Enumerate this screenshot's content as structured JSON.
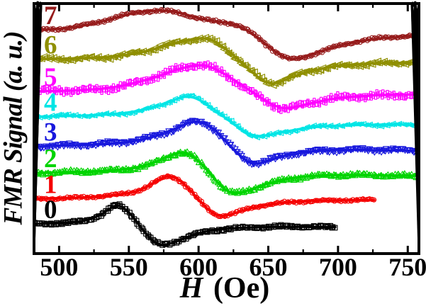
{
  "figure": {
    "ylabel": "FMR Signal (a. u.)",
    "xlabel_italic": "H",
    "xlabel_rest": " (Oe)"
  },
  "chart_data": {
    "type": "line",
    "title": "",
    "xlabel": "H (Oe)",
    "ylabel": "FMR Signal (a. u.)",
    "x_unit": "Oe",
    "y_unit": "a. u. (arbitrary, no numeric ticks)",
    "xlim": [
      482,
      758
    ],
    "ylim": [
      0,
      10.1
    ],
    "x_major_ticks": [
      500,
      550,
      600,
      650,
      700,
      750
    ],
    "x_minor_step": 25,
    "grid": false,
    "legend_position": "curve index labels drawn on plot at left of each curve",
    "series": [
      {
        "label": "0",
        "color": "#000000",
        "marker": "square",
        "points": [
          [
            483,
            1.2
          ],
          [
            495,
            1.22
          ],
          [
            508,
            1.26
          ],
          [
            520,
            1.36
          ],
          [
            530,
            1.58
          ],
          [
            537,
            1.84
          ],
          [
            541,
            1.94
          ],
          [
            545,
            1.88
          ],
          [
            551,
            1.6
          ],
          [
            557,
            1.18
          ],
          [
            563,
            0.76
          ],
          [
            568,
            0.48
          ],
          [
            572,
            0.37
          ],
          [
            576,
            0.36
          ],
          [
            582,
            0.45
          ],
          [
            590,
            0.62
          ],
          [
            600,
            0.82
          ],
          [
            612,
            0.95
          ],
          [
            625,
            1.02
          ],
          [
            640,
            1.06
          ],
          [
            660,
            1.08
          ],
          [
            680,
            1.08
          ],
          [
            698,
            1.07
          ]
        ]
      },
      {
        "label": "1",
        "color": "#F50000",
        "marker": "circle",
        "points": [
          [
            483,
            2.22
          ],
          [
            495,
            2.23
          ],
          [
            510,
            2.25
          ],
          [
            525,
            2.29
          ],
          [
            540,
            2.36
          ],
          [
            552,
            2.47
          ],
          [
            562,
            2.67
          ],
          [
            570,
            2.93
          ],
          [
            576,
            3.1
          ],
          [
            580,
            3.12
          ],
          [
            586,
            2.98
          ],
          [
            593,
            2.62
          ],
          [
            601,
            2.12
          ],
          [
            608,
            1.73
          ],
          [
            613,
            1.56
          ],
          [
            617,
            1.52
          ],
          [
            623,
            1.58
          ],
          [
            631,
            1.72
          ],
          [
            641,
            1.88
          ],
          [
            653,
            2.0
          ],
          [
            666,
            2.08
          ],
          [
            681,
            2.13
          ],
          [
            700,
            2.15
          ],
          [
            715,
            2.16
          ],
          [
            726,
            2.16
          ]
        ]
      },
      {
        "label": "2",
        "color": "#00D400",
        "marker": "triangle-up",
        "points": [
          [
            483,
            3.26
          ],
          [
            500,
            3.28
          ],
          [
            520,
            3.31
          ],
          [
            540,
            3.37
          ],
          [
            555,
            3.48
          ],
          [
            567,
            3.66
          ],
          [
            577,
            3.9
          ],
          [
            584,
            4.05
          ],
          [
            589,
            4.08
          ],
          [
            595,
            3.96
          ],
          [
            603,
            3.56
          ],
          [
            611,
            3.05
          ],
          [
            618,
            2.64
          ],
          [
            623,
            2.47
          ],
          [
            627,
            2.44
          ],
          [
            634,
            2.52
          ],
          [
            643,
            2.7
          ],
          [
            654,
            2.9
          ],
          [
            667,
            3.05
          ],
          [
            683,
            3.14
          ],
          [
            700,
            3.17
          ],
          [
            725,
            3.16
          ],
          [
            757,
            3.15
          ]
        ]
      },
      {
        "label": "3",
        "color": "#1818DD",
        "marker": "triangle-down",
        "points": [
          [
            483,
            4.34
          ],
          [
            500,
            4.36
          ],
          [
            520,
            4.39
          ],
          [
            540,
            4.45
          ],
          [
            558,
            4.59
          ],
          [
            572,
            4.8
          ],
          [
            584,
            5.06
          ],
          [
            593,
            5.28
          ],
          [
            599,
            5.33
          ],
          [
            605,
            5.24
          ],
          [
            613,
            4.92
          ],
          [
            621,
            4.44
          ],
          [
            629,
            4.0
          ],
          [
            635,
            3.73
          ],
          [
            640,
            3.64
          ],
          [
            646,
            3.68
          ],
          [
            654,
            3.82
          ],
          [
            664,
            3.98
          ],
          [
            677,
            4.1
          ],
          [
            693,
            4.17
          ],
          [
            712,
            4.19
          ],
          [
            733,
            4.17
          ],
          [
            757,
            4.15
          ]
        ]
      },
      {
        "label": "4",
        "color": "#00E5E5",
        "marker": "triangle-left",
        "points": [
          [
            483,
            5.53
          ],
          [
            500,
            5.55
          ],
          [
            520,
            5.58
          ],
          [
            540,
            5.64
          ],
          [
            556,
            5.76
          ],
          [
            570,
            5.95
          ],
          [
            582,
            6.2
          ],
          [
            590,
            6.33
          ],
          [
            597,
            6.29
          ],
          [
            605,
            6.06
          ],
          [
            615,
            5.66
          ],
          [
            626,
            5.2
          ],
          [
            634,
            4.9
          ],
          [
            640,
            4.77
          ],
          [
            645,
            4.75
          ],
          [
            653,
            4.81
          ],
          [
            663,
            4.93
          ],
          [
            676,
            5.06
          ],
          [
            691,
            5.14
          ],
          [
            711,
            5.19
          ],
          [
            733,
            5.21
          ],
          [
            757,
            5.21
          ]
        ]
      },
      {
        "label": "5",
        "color": "#FF00FF",
        "marker": "vertical-bar",
        "points": [
          [
            483,
            6.55
          ],
          [
            500,
            6.57
          ],
          [
            515,
            6.6
          ],
          [
            530,
            6.66
          ],
          [
            545,
            6.78
          ],
          [
            560,
            6.98
          ],
          [
            575,
            7.24
          ],
          [
            588,
            7.48
          ],
          [
            598,
            7.6
          ],
          [
            607,
            7.56
          ],
          [
            617,
            7.3
          ],
          [
            629,
            6.88
          ],
          [
            641,
            6.43
          ],
          [
            651,
            6.08
          ],
          [
            658,
            5.91
          ],
          [
            663,
            5.87
          ],
          [
            671,
            5.94
          ],
          [
            683,
            6.1
          ],
          [
            698,
            6.26
          ],
          [
            716,
            6.36
          ],
          [
            736,
            6.41
          ],
          [
            757,
            6.43
          ]
        ]
      },
      {
        "label": "6",
        "color": "#8F8F00",
        "marker": "triangle-left",
        "points": [
          [
            483,
            7.85
          ],
          [
            500,
            7.87
          ],
          [
            520,
            7.9
          ],
          [
            540,
            7.97
          ],
          [
            558,
            8.12
          ],
          [
            574,
            8.35
          ],
          [
            590,
            8.59
          ],
          [
            601,
            8.7
          ],
          [
            609,
            8.63
          ],
          [
            618,
            8.32
          ],
          [
            629,
            7.82
          ],
          [
            639,
            7.3
          ],
          [
            646,
            7.0
          ],
          [
            651,
            6.88
          ],
          [
            656,
            6.9
          ],
          [
            664,
            7.06
          ],
          [
            676,
            7.3
          ],
          [
            691,
            7.5
          ],
          [
            709,
            7.63
          ],
          [
            731,
            7.69
          ],
          [
            757,
            7.71
          ]
        ]
      },
      {
        "label": "7",
        "color": "#961B1B",
        "marker": "circle",
        "points": [
          [
            483,
            9.04
          ],
          [
            497,
            9.07
          ],
          [
            510,
            9.14
          ],
          [
            525,
            9.3
          ],
          [
            540,
            9.52
          ],
          [
            553,
            9.71
          ],
          [
            565,
            9.8
          ],
          [
            576,
            9.81
          ],
          [
            586,
            9.73
          ],
          [
            596,
            9.57
          ],
          [
            607,
            9.42
          ],
          [
            616,
            9.35
          ],
          [
            624,
            9.28
          ],
          [
            632,
            9.1
          ],
          [
            641,
            8.78
          ],
          [
            650,
            8.38
          ],
          [
            658,
            8.05
          ],
          [
            664,
            7.89
          ],
          [
            668,
            7.86
          ],
          [
            675,
            7.93
          ],
          [
            685,
            8.12
          ],
          [
            698,
            8.35
          ],
          [
            715,
            8.57
          ],
          [
            735,
            8.72
          ],
          [
            757,
            8.8
          ]
        ]
      }
    ]
  }
}
